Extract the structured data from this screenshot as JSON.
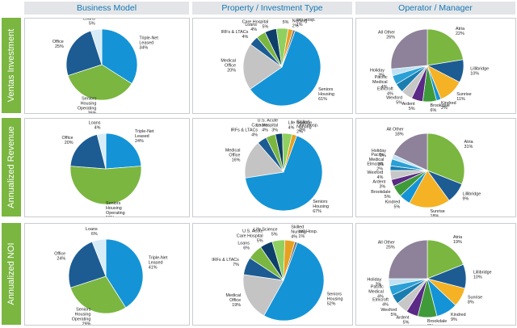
{
  "colors": {
    "Triple-Net Leased": "#1494d6",
    "Seniors Housing Operating": "#7ab640",
    "Office": "#1c5c93",
    "Loans": "#d6ecf7",
    "Seniors Housing": "#1494d6",
    "Medical Office": "#c4c4c4",
    "IRFs & LTACs": "#1c5c93",
    "Loans (P)": "#7ab640",
    "U.S. Acute Care Hospital": "#0e3f6a",
    "Life Science": "#8fd060",
    "Skilled Nursing": "#e8a020",
    "Int'l Hosp.": "#7a7a7a",
    "Atria": "#7ab640",
    "Lillibridge": "#1c5c93",
    "Sunrise": "#f5b225",
    "Kindred": "#1494d6",
    "Brookdale": "#3f9a3a",
    "Ardent": "#5a2a86",
    "Elmcroft": "#1a7db0",
    "Wexford": "#c7c7c7",
    "Pacific Medical": "#2aa0d6",
    "Holiday": "#bfe1f3",
    "All Other": "#8d8299"
  },
  "column_headers": [
    "Business Model",
    "Property / Investment Type",
    "Operator / Manager"
  ],
  "row_labels": [
    "Ventas Investment",
    "Annualized Revenue",
    "Annualized NOI"
  ],
  "chart_data": [
    {
      "type": "pie",
      "title": "Business Model",
      "row": "Ventas Investment",
      "slices": [
        {
          "label": "Triple-Net Leased",
          "value": 34
        },
        {
          "label": "Seniors Housing Operating",
          "value": 36
        },
        {
          "label": "Office",
          "value": 25
        },
        {
          "label": "Loans",
          "value": 5
        }
      ]
    },
    {
      "type": "pie",
      "title": "Property / Investment Type",
      "row": "Ventas Investment",
      "slices": [
        {
          "label": "Seniors Housing",
          "value": 61
        },
        {
          "label": "Medical Office",
          "value": 20
        },
        {
          "label": "IRFs & LTACs",
          "value": 4
        },
        {
          "label": "Loans",
          "value": 4
        },
        {
          "label": "U.S. Acute Care Hospital",
          "value": 5
        },
        {
          "label": "Life Science",
          "value": 5
        },
        {
          "label": "Skilled Nursing",
          "value": 2
        },
        {
          "label": "Int'l Hosp.",
          "value": 1
        }
      ]
    },
    {
      "type": "pie",
      "title": "Operator / Manager",
      "row": "Ventas Investment",
      "slices": [
        {
          "label": "Atria",
          "value": 22
        },
        {
          "label": "Lillibridge",
          "value": 10
        },
        {
          "label": "Sunrise",
          "value": 11
        },
        {
          "label": "Kindred",
          "value": 2
        },
        {
          "label": "Brookdale",
          "value": 6
        },
        {
          "label": "Ardent",
          "value": 5
        },
        {
          "label": "Wexford",
          "value": 5
        },
        {
          "label": "Elmcroft",
          "value": 4
        },
        {
          "label": "Pacific Medical",
          "value": 4
        },
        {
          "label": "Holiday",
          "value": 3
        },
        {
          "label": "All Other",
          "value": 26
        }
      ]
    },
    {
      "type": "pie",
      "title": "Business Model",
      "row": "Annualized Revenue",
      "slices": [
        {
          "label": "Triple-Net Leased",
          "value": 24
        },
        {
          "label": "Seniors Housing Operating",
          "value": 53
        },
        {
          "label": "Office",
          "value": 20
        },
        {
          "label": "Loans",
          "value": 4
        }
      ]
    },
    {
      "type": "pie",
      "title": "Property / Investment Type",
      "row": "Annualized Revenue",
      "slices": [
        {
          "label": "Seniors Housing",
          "value": 67
        },
        {
          "label": "Medical Office",
          "value": 16
        },
        {
          "label": "IRFs & LTACs",
          "value": 4
        },
        {
          "label": "Loans",
          "value": 4
        },
        {
          "label": "U.S. Acute Care Hospital",
          "value": 3
        },
        {
          "label": "Life Science",
          "value": 4
        },
        {
          "label": "Skilled Nursing",
          "value": 2
        },
        {
          "label": "Int'l Hosp.",
          "value": 0
        }
      ]
    },
    {
      "type": "pie",
      "title": "Operator / Manager",
      "row": "Annualized Revenue",
      "slices": [
        {
          "label": "Atria",
          "value": 31
        },
        {
          "label": "Lillibridge",
          "value": 9
        },
        {
          "label": "Sunrise",
          "value": 18
        },
        {
          "label": "Kindred",
          "value": 5
        },
        {
          "label": "Brookdale",
          "value": 5
        },
        {
          "label": "Ardent",
          "value": 3
        },
        {
          "label": "Wexford",
          "value": 4
        },
        {
          "label": "Elmcroft",
          "value": 2
        },
        {
          "label": "Pacific Medical",
          "value": 3
        },
        {
          "label": "Holiday",
          "value": 2
        },
        {
          "label": "All Other",
          "value": 18
        }
      ]
    },
    {
      "type": "pie",
      "title": "Business Model",
      "row": "Annualized NOI",
      "slices": [
        {
          "label": "Triple-Net Leased",
          "value": 41
        },
        {
          "label": "Seniors Housing Operating",
          "value": 29
        },
        {
          "label": "Office",
          "value": 24
        },
        {
          "label": "Loans",
          "value": 6
        }
      ]
    },
    {
      "type": "pie",
      "title": "Property / Investment Type",
      "row": "Annualized NOI",
      "slices": [
        {
          "label": "Seniors Housing",
          "value": 52
        },
        {
          "label": "Medical Office",
          "value": 19
        },
        {
          "label": "IRFs & LTACs",
          "value": 7
        },
        {
          "label": "Loans",
          "value": 6
        },
        {
          "label": "U.S. Acute Care Hospital",
          "value": 5
        },
        {
          "label": "Life Science",
          "value": 5
        },
        {
          "label": "Skilled Nursing",
          "value": 4
        },
        {
          "label": "Int'l Hosp.",
          "value": 1
        }
      ]
    },
    {
      "type": "pie",
      "title": "Operator / Manager",
      "row": "Annualized NOI",
      "slices": [
        {
          "label": "Atria",
          "value": 19
        },
        {
          "label": "Lillibridge",
          "value": 10
        },
        {
          "label": "Sunrise",
          "value": 8
        },
        {
          "label": "Kindred",
          "value": 9
        },
        {
          "label": "Brookdale",
          "value": 8
        },
        {
          "label": "Ardent",
          "value": 5
        },
        {
          "label": "Wexford",
          "value": 5
        },
        {
          "label": "Elmcroft",
          "value": 4
        },
        {
          "label": "Pacific Medical",
          "value": 4
        },
        {
          "label": "Holiday",
          "value": 3
        },
        {
          "label": "All Other",
          "value": 25
        }
      ]
    }
  ]
}
